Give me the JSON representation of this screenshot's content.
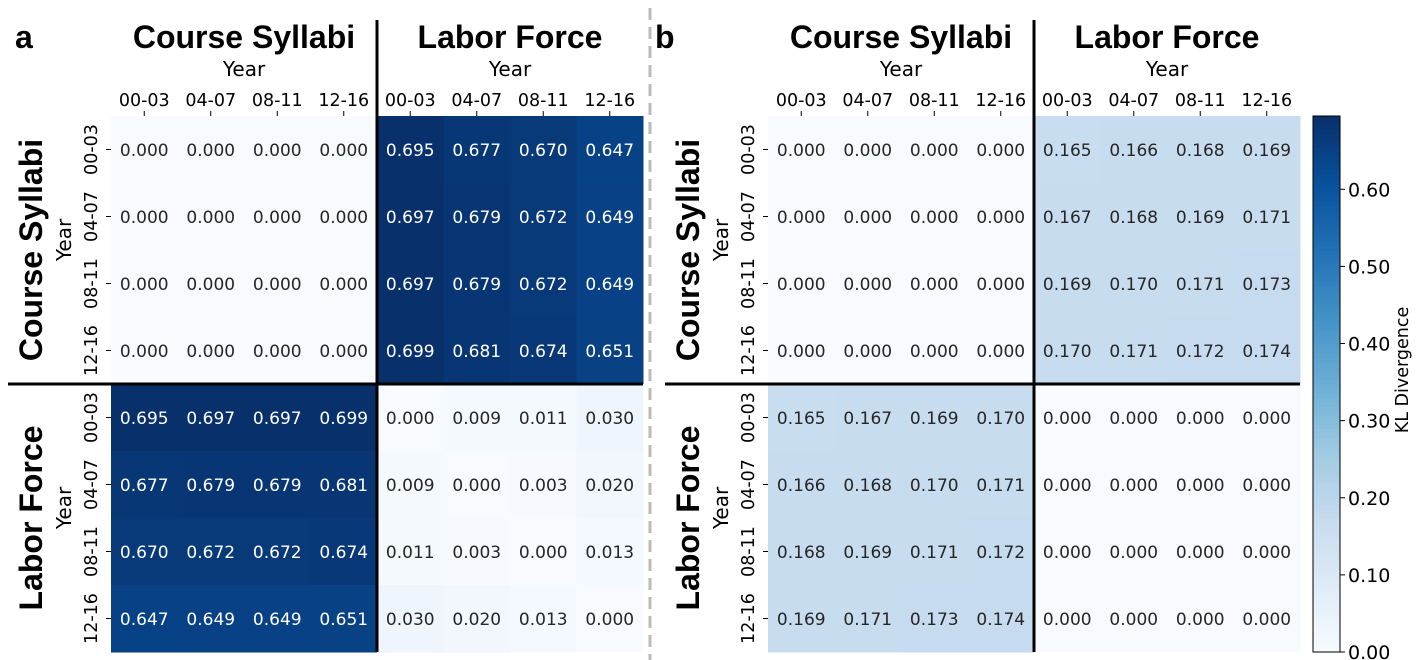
{
  "figure": {
    "divider_color": "#bbbbbb",
    "panels": [
      {
        "letter": "a",
        "group_labels": [
          "Course Syllabi",
          "Labor Force"
        ],
        "axis_label": "Year"
      },
      {
        "letter": "b",
        "group_labels": [
          "Course Syllabi",
          "Labor Force"
        ],
        "axis_label": "Year"
      }
    ]
  },
  "chart_data": [
    {
      "type": "heatmap",
      "panel": "a",
      "x_groups": [
        "Course Syllabi",
        "Labor Force"
      ],
      "y_groups": [
        "Course Syllabi",
        "Labor Force"
      ],
      "categories": [
        "00-03",
        "04-07",
        "08-11",
        "12-16"
      ],
      "xlabel": "Year",
      "ylabel": "Year",
      "values": [
        [
          0.0,
          0.0,
          0.0,
          0.0,
          0.695,
          0.677,
          0.67,
          0.647
        ],
        [
          0.0,
          0.0,
          0.0,
          0.0,
          0.697,
          0.679,
          0.672,
          0.649
        ],
        [
          0.0,
          0.0,
          0.0,
          0.0,
          0.697,
          0.679,
          0.672,
          0.649
        ],
        [
          0.0,
          0.0,
          0.0,
          0.0,
          0.699,
          0.681,
          0.674,
          0.651
        ],
        [
          0.695,
          0.697,
          0.697,
          0.699,
          0.0,
          0.009,
          0.011,
          0.03
        ],
        [
          0.677,
          0.679,
          0.679,
          0.681,
          0.009,
          0.0,
          0.003,
          0.02
        ],
        [
          0.67,
          0.672,
          0.672,
          0.674,
          0.011,
          0.003,
          0.0,
          0.013
        ],
        [
          0.647,
          0.649,
          0.649,
          0.651,
          0.03,
          0.02,
          0.013,
          0.0
        ]
      ]
    },
    {
      "type": "heatmap",
      "panel": "b",
      "x_groups": [
        "Course Syllabi",
        "Labor Force"
      ],
      "y_groups": [
        "Course Syllabi",
        "Labor Force"
      ],
      "categories": [
        "00-03",
        "04-07",
        "08-11",
        "12-16"
      ],
      "xlabel": "Year",
      "ylabel": "Year",
      "values": [
        [
          0.0,
          0.0,
          0.0,
          0.0,
          0.165,
          0.166,
          0.168,
          0.169
        ],
        [
          0.0,
          0.0,
          0.0,
          0.0,
          0.167,
          0.168,
          0.169,
          0.171
        ],
        [
          0.0,
          0.0,
          0.0,
          0.0,
          0.169,
          0.17,
          0.171,
          0.173
        ],
        [
          0.0,
          0.0,
          0.0,
          0.0,
          0.17,
          0.171,
          0.172,
          0.174
        ],
        [
          0.165,
          0.167,
          0.169,
          0.17,
          0.0,
          0.0,
          0.0,
          0.0
        ],
        [
          0.166,
          0.168,
          0.17,
          0.171,
          0.0,
          0.0,
          0.0,
          0.0
        ],
        [
          0.168,
          0.169,
          0.171,
          0.172,
          0.0,
          0.0,
          0.0,
          0.0
        ],
        [
          0.169,
          0.171,
          0.173,
          0.174,
          0.0,
          0.0,
          0.0,
          0.0
        ]
      ]
    }
  ],
  "colorbar": {
    "label": "KL Divergence",
    "range": [
      0,
      0.695
    ],
    "ticks": [
      0.0,
      0.1,
      0.2,
      0.3,
      0.4,
      0.5,
      0.6
    ],
    "tick_labels": [
      "0.00",
      "0.10",
      "0.20",
      "0.30",
      "0.40",
      "0.50",
      "0.60"
    ],
    "colormap": "Blues",
    "colormap_stops": [
      "#f7fbff",
      "#deebf7",
      "#c6dbef",
      "#9ecae1",
      "#6baed6",
      "#4292c6",
      "#2171b5",
      "#08519c",
      "#08306b"
    ]
  }
}
